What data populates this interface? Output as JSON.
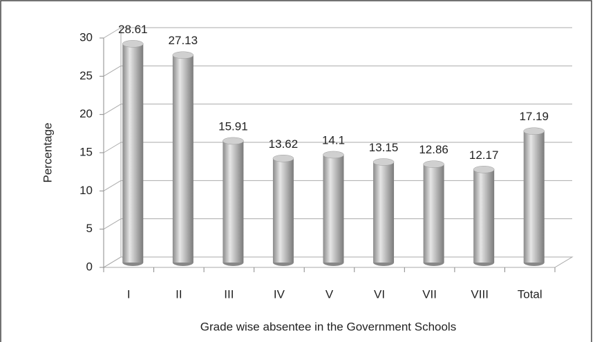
{
  "chart_data": {
    "type": "bar",
    "categories": [
      "I",
      "II",
      "III",
      "IV",
      "V",
      "VI",
      "VII",
      "VIII",
      "Total"
    ],
    "values": [
      28.61,
      27.13,
      15.91,
      13.62,
      14.1,
      13.15,
      12.86,
      12.17,
      17.19
    ],
    "color": "#a6a6a6",
    "ylabel": "Percentage",
    "xlabel": "Grade wise absentee in the Government Schools",
    "ylim": [
      0,
      30
    ],
    "yticks": [
      0,
      5,
      10,
      15,
      20,
      25,
      30
    ],
    "grid": true
  }
}
